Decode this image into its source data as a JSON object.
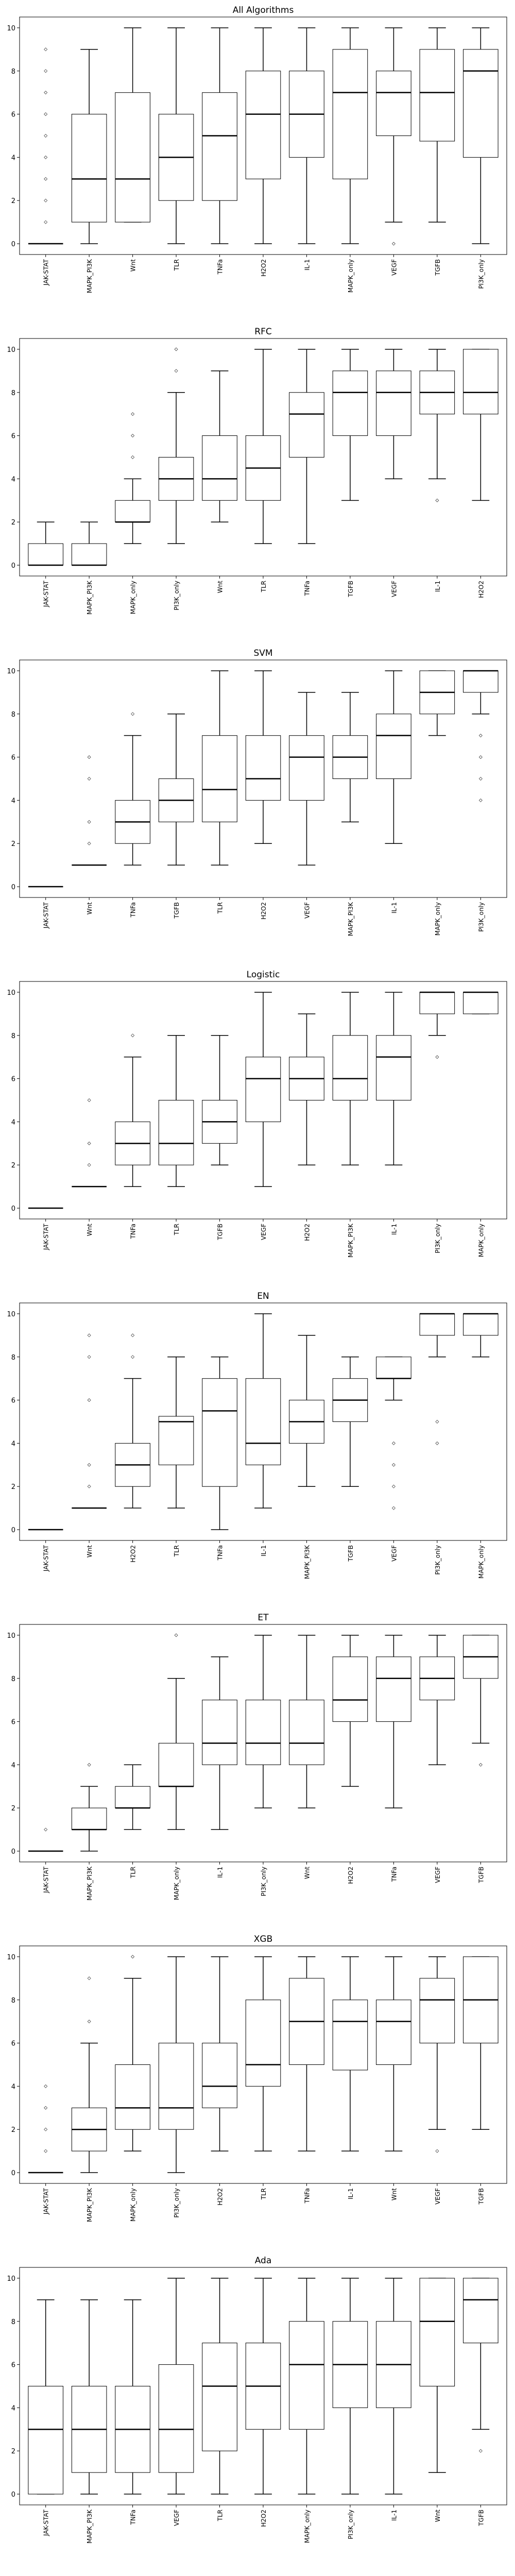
{
  "chart_data": [
    {
      "type": "boxplot",
      "title": "All Algorithms",
      "categories": [
        "JAK-STAT",
        "MAPK_PI3K",
        "Wnt",
        "TLR",
        "TNFa",
        "H2O2",
        "IL-1",
        "MAPK_only",
        "VEGF",
        "TGFB",
        "PI3K_only"
      ],
      "boxes": [
        {
          "whislo": 0,
          "q1": 0,
          "med": 0,
          "q3": 0,
          "whishi": 0,
          "fliers": [
            1,
            2,
            3,
            4,
            5,
            6,
            7,
            8,
            9
          ]
        },
        {
          "whislo": 0,
          "q1": 1,
          "med": 3,
          "q3": 6,
          "whishi": 9,
          "fliers": []
        },
        {
          "whislo": 1,
          "q1": 1,
          "med": 3,
          "q3": 7,
          "whishi": 10,
          "fliers": []
        },
        {
          "whislo": 0,
          "q1": 2,
          "med": 4,
          "q3": 6,
          "whishi": 10,
          "fliers": []
        },
        {
          "whislo": 0,
          "q1": 2,
          "med": 5,
          "q3": 7,
          "whishi": 10,
          "fliers": []
        },
        {
          "whislo": 0,
          "q1": 3,
          "med": 6,
          "q3": 8,
          "whishi": 10,
          "fliers": []
        },
        {
          "whislo": 0,
          "q1": 4,
          "med": 6,
          "q3": 8,
          "whishi": 10,
          "fliers": []
        },
        {
          "whislo": 0,
          "q1": 3,
          "med": 7,
          "q3": 9,
          "whishi": 10,
          "fliers": []
        },
        {
          "whislo": 1,
          "q1": 5,
          "med": 7,
          "q3": 8,
          "whishi": 10,
          "fliers": [
            0
          ]
        },
        {
          "whislo": 1,
          "q1": 4.75,
          "med": 7,
          "q3": 9,
          "whishi": 10,
          "fliers": []
        },
        {
          "whislo": 0,
          "q1": 4,
          "med": 8,
          "q3": 9,
          "whishi": 10,
          "fliers": []
        }
      ],
      "ylim": [
        -0.5,
        10.5
      ],
      "yticks": [
        0,
        2,
        4,
        6,
        8,
        10
      ]
    },
    {
      "type": "boxplot",
      "title": "RFC",
      "categories": [
        "JAK-STAT",
        "MAPK_PI3K",
        "MAPK_only",
        "PI3K_only",
        "Wnt",
        "TLR",
        "TNFa",
        "TGFB",
        "VEGF",
        "IL-1",
        "H2O2"
      ],
      "boxes": [
        {
          "whislo": 0,
          "q1": 0,
          "med": 0,
          "q3": 1,
          "whishi": 2,
          "fliers": []
        },
        {
          "whislo": 0,
          "q1": 0,
          "med": 0,
          "q3": 1,
          "whishi": 2,
          "fliers": []
        },
        {
          "whislo": 1,
          "q1": 2,
          "med": 2,
          "q3": 3,
          "whishi": 4,
          "fliers": [
            5,
            6,
            7
          ]
        },
        {
          "whislo": 1,
          "q1": 3,
          "med": 4,
          "q3": 5,
          "whishi": 8,
          "fliers": [
            9,
            10
          ]
        },
        {
          "whislo": 2,
          "q1": 3,
          "med": 4,
          "q3": 6,
          "whishi": 9,
          "fliers": []
        },
        {
          "whislo": 1,
          "q1": 3,
          "med": 4.5,
          "q3": 6,
          "whishi": 10,
          "fliers": []
        },
        {
          "whislo": 1,
          "q1": 5,
          "med": 7,
          "q3": 8,
          "whishi": 10,
          "fliers": []
        },
        {
          "whislo": 3,
          "q1": 6,
          "med": 8,
          "q3": 9,
          "whishi": 10,
          "fliers": []
        },
        {
          "whislo": 4,
          "q1": 6,
          "med": 8,
          "q3": 9,
          "whishi": 10,
          "fliers": []
        },
        {
          "whislo": 4,
          "q1": 7,
          "med": 8,
          "q3": 9,
          "whishi": 10,
          "fliers": [
            3
          ]
        },
        {
          "whislo": 3,
          "q1": 7,
          "med": 8,
          "q3": 10,
          "whishi": 10,
          "fliers": []
        }
      ],
      "ylim": [
        -0.5,
        10.5
      ],
      "yticks": [
        0,
        2,
        4,
        6,
        8,
        10
      ]
    },
    {
      "type": "boxplot",
      "title": "SVM",
      "categories": [
        "JAK-STAT",
        "Wnt",
        "TNFa",
        "TGFB",
        "TLR",
        "H2O2",
        "VEGF",
        "MAPK_PI3K",
        "IL-1",
        "MAPK_only",
        "PI3K_only"
      ],
      "boxes": [
        {
          "whislo": 0,
          "q1": 0,
          "med": 0,
          "q3": 0,
          "whishi": 0,
          "fliers": []
        },
        {
          "whislo": 1,
          "q1": 1,
          "med": 1,
          "q3": 1,
          "whishi": 1,
          "fliers": [
            2,
            3,
            5,
            6
          ]
        },
        {
          "whislo": 1,
          "q1": 2,
          "med": 3,
          "q3": 4,
          "whishi": 7,
          "fliers": [
            8
          ]
        },
        {
          "whislo": 1,
          "q1": 3,
          "med": 4,
          "q3": 5,
          "whishi": 8,
          "fliers": []
        },
        {
          "whislo": 1,
          "q1": 3,
          "med": 4.5,
          "q3": 7,
          "whishi": 10,
          "fliers": []
        },
        {
          "whislo": 2,
          "q1": 4,
          "med": 5,
          "q3": 7,
          "whishi": 10,
          "fliers": []
        },
        {
          "whislo": 1,
          "q1": 4,
          "med": 6,
          "q3": 7,
          "whishi": 9,
          "fliers": []
        },
        {
          "whislo": 3,
          "q1": 5,
          "med": 6,
          "q3": 7,
          "whishi": 9,
          "fliers": []
        },
        {
          "whislo": 2,
          "q1": 5,
          "med": 7,
          "q3": 8,
          "whishi": 10,
          "fliers": []
        },
        {
          "whislo": 7,
          "q1": 8,
          "med": 9,
          "q3": 10,
          "whishi": 10,
          "fliers": []
        },
        {
          "whislo": 8,
          "q1": 9,
          "med": 10,
          "q3": 10,
          "whishi": 10,
          "fliers": [
            4,
            5,
            6,
            7
          ]
        }
      ],
      "ylim": [
        -0.5,
        10.5
      ],
      "yticks": [
        0,
        2,
        4,
        6,
        8,
        10
      ]
    },
    {
      "type": "boxplot",
      "title": "Logistic",
      "categories": [
        "JAK-STAT",
        "Wnt",
        "TNFa",
        "TLR",
        "TGFB",
        "VEGF",
        "H2O2",
        "MAPK_PI3K",
        "IL-1",
        "PI3K_only",
        "MAPK_only"
      ],
      "boxes": [
        {
          "whislo": 0,
          "q1": 0,
          "med": 0,
          "q3": 0,
          "whishi": 0,
          "fliers": []
        },
        {
          "whislo": 1,
          "q1": 1,
          "med": 1,
          "q3": 1,
          "whishi": 1,
          "fliers": [
            2,
            3,
            5
          ]
        },
        {
          "whislo": 1,
          "q1": 2,
          "med": 3,
          "q3": 4,
          "whishi": 7,
          "fliers": [
            8
          ]
        },
        {
          "whislo": 1,
          "q1": 2,
          "med": 3,
          "q3": 5,
          "whishi": 8,
          "fliers": []
        },
        {
          "whislo": 2,
          "q1": 3,
          "med": 4,
          "q3": 5,
          "whishi": 8,
          "fliers": []
        },
        {
          "whislo": 1,
          "q1": 4,
          "med": 6,
          "q3": 7,
          "whishi": 10,
          "fliers": []
        },
        {
          "whislo": 2,
          "q1": 5,
          "med": 6,
          "q3": 7,
          "whishi": 9,
          "fliers": []
        },
        {
          "whislo": 2,
          "q1": 5,
          "med": 6,
          "q3": 8,
          "whishi": 10,
          "fliers": []
        },
        {
          "whislo": 2,
          "q1": 5,
          "med": 7,
          "q3": 8,
          "whishi": 10,
          "fliers": []
        },
        {
          "whislo": 8,
          "q1": 9,
          "med": 10,
          "q3": 10,
          "whishi": 10,
          "fliers": [
            7
          ]
        },
        {
          "whislo": 9,
          "q1": 9,
          "med": 10,
          "q3": 10,
          "whishi": 10,
          "fliers": []
        }
      ],
      "ylim": [
        -0.5,
        10.5
      ],
      "yticks": [
        0,
        2,
        4,
        6,
        8,
        10
      ]
    },
    {
      "type": "boxplot",
      "title": "EN",
      "categories": [
        "JAK-STAT",
        "Wnt",
        "H2O2",
        "TLR",
        "TNFa",
        "IL-1",
        "MAPK_PI3K",
        "TGFB",
        "VEGF",
        "PI3K_only",
        "MAPK_only"
      ],
      "boxes": [
        {
          "whislo": 0,
          "q1": 0,
          "med": 0,
          "q3": 0,
          "whishi": 0,
          "fliers": []
        },
        {
          "whislo": 1,
          "q1": 1,
          "med": 1,
          "q3": 1,
          "whishi": 1,
          "fliers": [
            2,
            3,
            6,
            8,
            9
          ]
        },
        {
          "whislo": 1,
          "q1": 2,
          "med": 3,
          "q3": 4,
          "whishi": 7,
          "fliers": [
            8,
            9
          ]
        },
        {
          "whislo": 1,
          "q1": 3,
          "med": 5,
          "q3": 5.25,
          "whishi": 8,
          "fliers": []
        },
        {
          "whislo": 0,
          "q1": 2,
          "med": 5.5,
          "q3": 7,
          "whishi": 8,
          "fliers": []
        },
        {
          "whislo": 1,
          "q1": 3,
          "med": 4,
          "q3": 7,
          "whishi": 10,
          "fliers": []
        },
        {
          "whislo": 2,
          "q1": 4,
          "med": 5,
          "q3": 6,
          "whishi": 9,
          "fliers": []
        },
        {
          "whislo": 2,
          "q1": 5,
          "med": 6,
          "q3": 7,
          "whishi": 8,
          "fliers": []
        },
        {
          "whislo": 6,
          "q1": 7,
          "med": 7,
          "q3": 8,
          "whishi": 8,
          "fliers": [
            1,
            2,
            3,
            4
          ]
        },
        {
          "whislo": 8,
          "q1": 9,
          "med": 10,
          "q3": 10,
          "whishi": 10,
          "fliers": [
            4,
            5
          ]
        },
        {
          "whislo": 8,
          "q1": 9,
          "med": 10,
          "q3": 10,
          "whishi": 10,
          "fliers": []
        }
      ],
      "ylim": [
        -0.5,
        10.5
      ],
      "yticks": [
        0,
        2,
        4,
        6,
        8,
        10
      ]
    },
    {
      "type": "boxplot",
      "title": "ET",
      "categories": [
        "JAK-STAT",
        "MAPK_PI3K",
        "TLR",
        "MAPK_only",
        "IL-1",
        "PI3K_only",
        "Wnt",
        "H2O2",
        "TNFa",
        "VEGF",
        "TGFB"
      ],
      "boxes": [
        {
          "whislo": 0,
          "q1": 0,
          "med": 0,
          "q3": 0,
          "whishi": 0,
          "fliers": [
            1
          ]
        },
        {
          "whislo": 0,
          "q1": 1,
          "med": 1,
          "q3": 2,
          "whishi": 3,
          "fliers": [
            4
          ]
        },
        {
          "whislo": 1,
          "q1": 2,
          "med": 2,
          "q3": 3,
          "whishi": 4,
          "fliers": []
        },
        {
          "whislo": 1,
          "q1": 3,
          "med": 3,
          "q3": 5,
          "whishi": 8,
          "fliers": [
            10
          ]
        },
        {
          "whislo": 1,
          "q1": 4,
          "med": 5,
          "q3": 7,
          "whishi": 9,
          "fliers": []
        },
        {
          "whislo": 2,
          "q1": 4,
          "med": 5,
          "q3": 7,
          "whishi": 10,
          "fliers": []
        },
        {
          "whislo": 2,
          "q1": 4,
          "med": 5,
          "q3": 7,
          "whishi": 10,
          "fliers": []
        },
        {
          "whislo": 3,
          "q1": 6,
          "med": 7,
          "q3": 9,
          "whishi": 10,
          "fliers": []
        },
        {
          "whislo": 2,
          "q1": 6,
          "med": 8,
          "q3": 9,
          "whishi": 10,
          "fliers": []
        },
        {
          "whislo": 4,
          "q1": 7,
          "med": 8,
          "q3": 9,
          "whishi": 10,
          "fliers": []
        },
        {
          "whislo": 5,
          "q1": 8,
          "med": 9,
          "q3": 10,
          "whishi": 10,
          "fliers": [
            4
          ]
        }
      ],
      "ylim": [
        -0.5,
        10.5
      ],
      "yticks": [
        0,
        2,
        4,
        6,
        8,
        10
      ]
    },
    {
      "type": "boxplot",
      "title": "XGB",
      "categories": [
        "JAK-STAT",
        "MAPK_PI3K",
        "MAPK_only",
        "PI3K_only",
        "H2O2",
        "TLR",
        "TNFa",
        "IL-1",
        "Wnt",
        "VEGF",
        "TGFB"
      ],
      "boxes": [
        {
          "whislo": 0,
          "q1": 0,
          "med": 0,
          "q3": 0,
          "whishi": 0,
          "fliers": [
            1,
            2,
            3,
            4
          ]
        },
        {
          "whislo": 0,
          "q1": 1,
          "med": 2,
          "q3": 3,
          "whishi": 6,
          "fliers": [
            7,
            9
          ]
        },
        {
          "whislo": 1,
          "q1": 2,
          "med": 3,
          "q3": 5,
          "whishi": 9,
          "fliers": [
            10
          ]
        },
        {
          "whislo": 0,
          "q1": 2,
          "med": 3,
          "q3": 6,
          "whishi": 10,
          "fliers": []
        },
        {
          "whislo": 1,
          "q1": 3,
          "med": 4,
          "q3": 6,
          "whishi": 10,
          "fliers": []
        },
        {
          "whislo": 1,
          "q1": 4,
          "med": 5,
          "q3": 8,
          "whishi": 10,
          "fliers": []
        },
        {
          "whislo": 1,
          "q1": 5,
          "med": 7,
          "q3": 9,
          "whishi": 10,
          "fliers": []
        },
        {
          "whislo": 1,
          "q1": 4.75,
          "med": 7,
          "q3": 8,
          "whishi": 10,
          "fliers": []
        },
        {
          "whislo": 1,
          "q1": 5,
          "med": 7,
          "q3": 8,
          "whishi": 10,
          "fliers": []
        },
        {
          "whislo": 2,
          "q1": 6,
          "med": 8,
          "q3": 9,
          "whishi": 10,
          "fliers": [
            1
          ]
        },
        {
          "whislo": 2,
          "q1": 6,
          "med": 8,
          "q3": 10,
          "whishi": 10,
          "fliers": []
        }
      ],
      "ylim": [
        -0.5,
        10.5
      ],
      "yticks": [
        0,
        2,
        4,
        6,
        8,
        10
      ]
    },
    {
      "type": "boxplot",
      "title": "Ada",
      "categories": [
        "JAK-STAT",
        "MAPK_PI3K",
        "TNFa",
        "VEGF",
        "TLR",
        "H2O2",
        "MAPK_only",
        "PI3K_only",
        "IL-1",
        "Wnt",
        "TGFB"
      ],
      "boxes": [
        {
          "whislo": 0,
          "q1": 0,
          "med": 3,
          "q3": 5,
          "whishi": 9,
          "fliers": []
        },
        {
          "whislo": 0,
          "q1": 1,
          "med": 3,
          "q3": 5,
          "whishi": 9,
          "fliers": []
        },
        {
          "whislo": 0,
          "q1": 1,
          "med": 3,
          "q3": 5,
          "whishi": 9,
          "fliers": []
        },
        {
          "whislo": 0,
          "q1": 1,
          "med": 3,
          "q3": 6,
          "whishi": 10,
          "fliers": []
        },
        {
          "whislo": 0,
          "q1": 2,
          "med": 5,
          "q3": 7,
          "whishi": 10,
          "fliers": []
        },
        {
          "whislo": 0,
          "q1": 3,
          "med": 5,
          "q3": 7,
          "whishi": 10,
          "fliers": []
        },
        {
          "whislo": 0,
          "q1": 3,
          "med": 6,
          "q3": 8,
          "whishi": 10,
          "fliers": []
        },
        {
          "whislo": 0,
          "q1": 4,
          "med": 6,
          "q3": 8,
          "whishi": 10,
          "fliers": []
        },
        {
          "whislo": 0,
          "q1": 4,
          "med": 6,
          "q3": 8,
          "whishi": 10,
          "fliers": []
        },
        {
          "whislo": 1,
          "q1": 5,
          "med": 8,
          "q3": 10,
          "whishi": 10,
          "fliers": []
        },
        {
          "whislo": 3,
          "q1": 7,
          "med": 9,
          "q3": 10,
          "whishi": 10,
          "fliers": [
            2
          ]
        }
      ],
      "ylim": [
        -0.5,
        10.5
      ],
      "yticks": [
        0,
        2,
        4,
        6,
        8,
        10
      ]
    }
  ]
}
